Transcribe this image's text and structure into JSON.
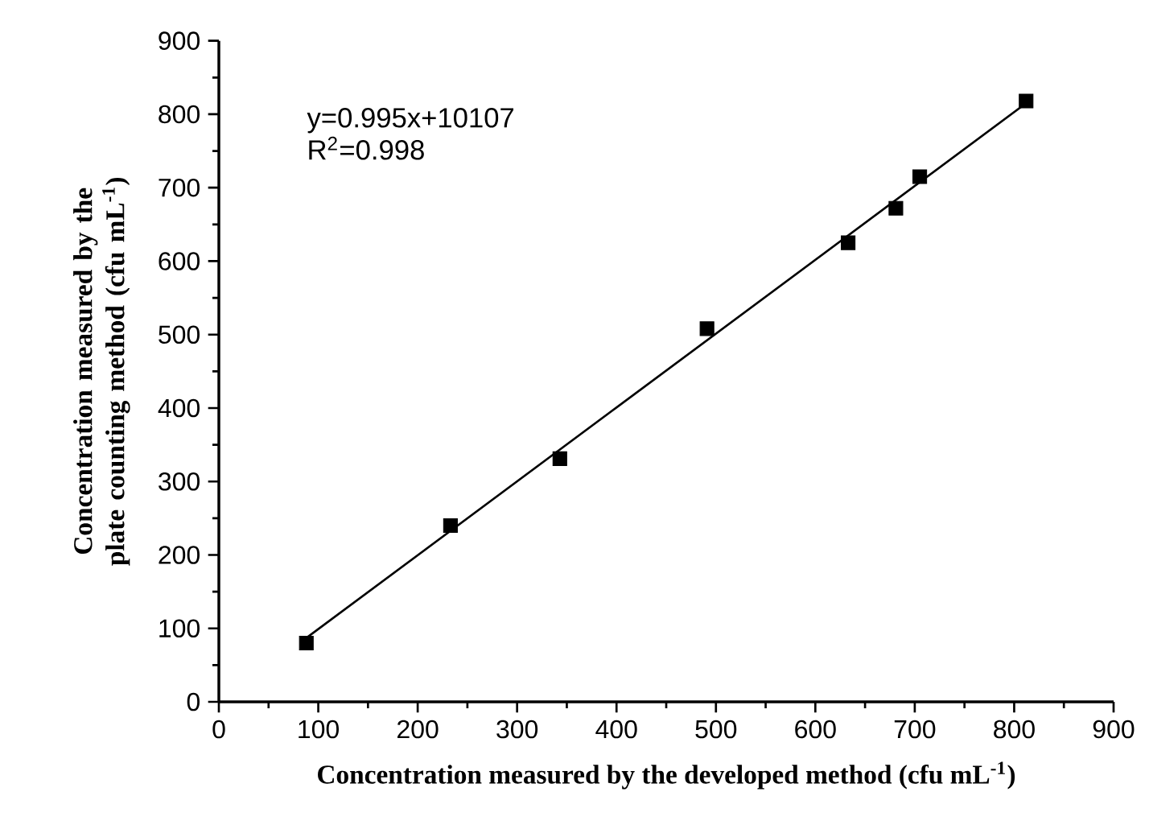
{
  "chart_data": {
    "type": "scatter",
    "xlabel": "Concentration measured by the developed method (cfu mL$^{-1}$)",
    "ylabel": "Concentration measured by the plate counting method (cfu mL$^{-1}$)",
    "x": [
      88,
      233,
      343,
      491,
      633,
      681,
      705,
      812
    ],
    "series": [
      {
        "color": "#000000",
        "marker": "square",
        "values": [
          80,
          240,
          331,
          508,
          625,
          672,
          715,
          818
        ]
      },
      {
        "type": "line",
        "color": "#000000",
        "marker": "none",
        "line_style": "solid",
        "x": [
          88,
          812
        ],
        "values": [
          87,
          815
        ]
      }
    ],
    "annotations": [
      "y=0.995x+10107",
      "R$^{2}$=0.998"
    ],
    "xlim": [
      0,
      900
    ],
    "ylim": [
      0,
      900
    ],
    "xticks": [
      0,
      100,
      200,
      300,
      400,
      500,
      600,
      700,
      800,
      900
    ],
    "yticks": [
      0,
      100,
      200,
      300,
      400,
      500,
      600,
      700,
      800,
      900
    ],
    "grid": false
  }
}
